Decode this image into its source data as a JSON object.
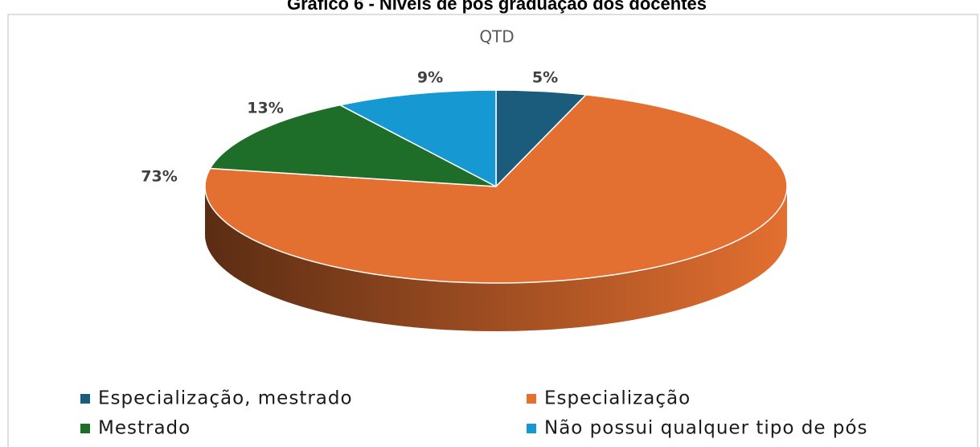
{
  "chart_data": {
    "type": "pie3d",
    "title": "Gráfico 6 - Níveis de pós graduação dos docentes",
    "subtitle": "QTD",
    "categories": [
      "Especialização, mestrado",
      "Especialização",
      "Mestrado",
      "Não possui qualquer tipo de pós"
    ],
    "values": [
      5,
      73,
      13,
      9
    ],
    "value_labels": [
      "5%",
      "73%",
      "13%",
      "9%"
    ],
    "colors": [
      "#1b5c7c",
      "#e36f30",
      "#1e6e2a",
      "#1699d3"
    ]
  }
}
